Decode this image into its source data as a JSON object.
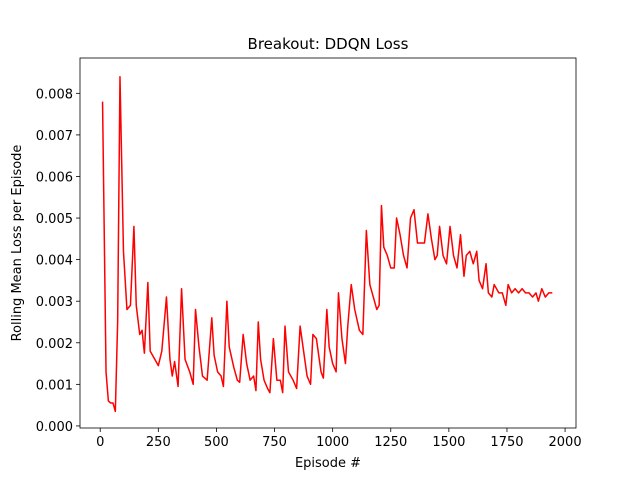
{
  "chart_data": {
    "type": "line",
    "title": "Breakout: DDQN Loss",
    "xlabel": "Episode #",
    "ylabel": "Rolling Mean Loss per Episode",
    "x": [
      10,
      25,
      35,
      45,
      55,
      65,
      75,
      85,
      100,
      115,
      130,
      145,
      155,
      170,
      180,
      190,
      205,
      215,
      235,
      250,
      265,
      285,
      300,
      310,
      320,
      335,
      350,
      365,
      385,
      400,
      410,
      425,
      440,
      460,
      480,
      490,
      505,
      520,
      530,
      545,
      555,
      575,
      590,
      600,
      615,
      630,
      645,
      660,
      670,
      680,
      690,
      705,
      720,
      730,
      745,
      760,
      775,
      785,
      795,
      810,
      830,
      845,
      860,
      875,
      890,
      905,
      915,
      930,
      950,
      960,
      975,
      985,
      1000,
      1015,
      1025,
      1040,
      1055,
      1065,
      1080,
      1095,
      1115,
      1130,
      1145,
      1160,
      1175,
      1190,
      1200,
      1210,
      1220,
      1235,
      1250,
      1265,
      1275,
      1290,
      1305,
      1320,
      1335,
      1350,
      1365,
      1380,
      1395,
      1410,
      1425,
      1440,
      1450,
      1460,
      1475,
      1490,
      1505,
      1520,
      1535,
      1550,
      1565,
      1575,
      1590,
      1605,
      1620,
      1630,
      1645,
      1660,
      1670,
      1685,
      1695,
      1715,
      1730,
      1745,
      1755,
      1770,
      1785,
      1800,
      1815,
      1830,
      1845,
      1860,
      1875,
      1885,
      1900,
      1915,
      1930,
      1945
    ],
    "series": [
      {
        "name": "loss",
        "color": "#ff0000",
        "values": [
          0.0078,
          0.0013,
          0.0006,
          0.00055,
          0.00055,
          0.00035,
          0.0025,
          0.0084,
          0.0042,
          0.0028,
          0.0029,
          0.0048,
          0.0029,
          0.0022,
          0.0023,
          0.00175,
          0.00345,
          0.0018,
          0.0016,
          0.00145,
          0.0018,
          0.0031,
          0.0016,
          0.0012,
          0.00155,
          0.00095,
          0.0033,
          0.0016,
          0.0013,
          0.001,
          0.0028,
          0.0019,
          0.0012,
          0.0011,
          0.0026,
          0.0017,
          0.0013,
          0.0012,
          0.00095,
          0.003,
          0.0019,
          0.0014,
          0.0011,
          0.00105,
          0.0022,
          0.0015,
          0.0011,
          0.0012,
          0.00085,
          0.0025,
          0.0016,
          0.0011,
          0.0009,
          0.0008,
          0.0021,
          0.0011,
          0.0011,
          0.0008,
          0.0024,
          0.0013,
          0.0011,
          0.0009,
          0.0024,
          0.0018,
          0.0012,
          0.001,
          0.0022,
          0.0021,
          0.0013,
          0.00115,
          0.0028,
          0.0019,
          0.0015,
          0.0013,
          0.0032,
          0.0021,
          0.0015,
          0.0024,
          0.0034,
          0.0028,
          0.0023,
          0.0022,
          0.0047,
          0.0034,
          0.0031,
          0.0028,
          0.0029,
          0.0053,
          0.0043,
          0.0041,
          0.0038,
          0.0038,
          0.005,
          0.0046,
          0.0041,
          0.0038,
          0.005,
          0.0052,
          0.0044,
          0.0044,
          0.0044,
          0.0051,
          0.0045,
          0.004,
          0.0041,
          0.0048,
          0.0041,
          0.0039,
          0.0048,
          0.0041,
          0.0038,
          0.0046,
          0.0036,
          0.0041,
          0.0042,
          0.0039,
          0.0042,
          0.0035,
          0.0033,
          0.0039,
          0.0032,
          0.0031,
          0.0034,
          0.0032,
          0.0032,
          0.0029,
          0.0034,
          0.0032,
          0.0033,
          0.0032,
          0.0033,
          0.0032,
          0.0032,
          0.0031,
          0.0032,
          0.003,
          0.0033,
          0.0031,
          0.0032,
          0.0032
        ]
      }
    ],
    "xlim": [
      -87,
      2047
    ],
    "xticks": [
      0,
      250,
      500,
      750,
      1000,
      1250,
      1500,
      1750,
      2000
    ],
    "ylim": [
      -5e-05,
      0.00885
    ],
    "yticks": [
      {
        "value": 0,
        "label": "0.000"
      },
      0.001,
      0.002,
      0.003,
      0.004,
      0.005,
      0.006,
      0.007,
      0.008
    ],
    "grid": false
  }
}
